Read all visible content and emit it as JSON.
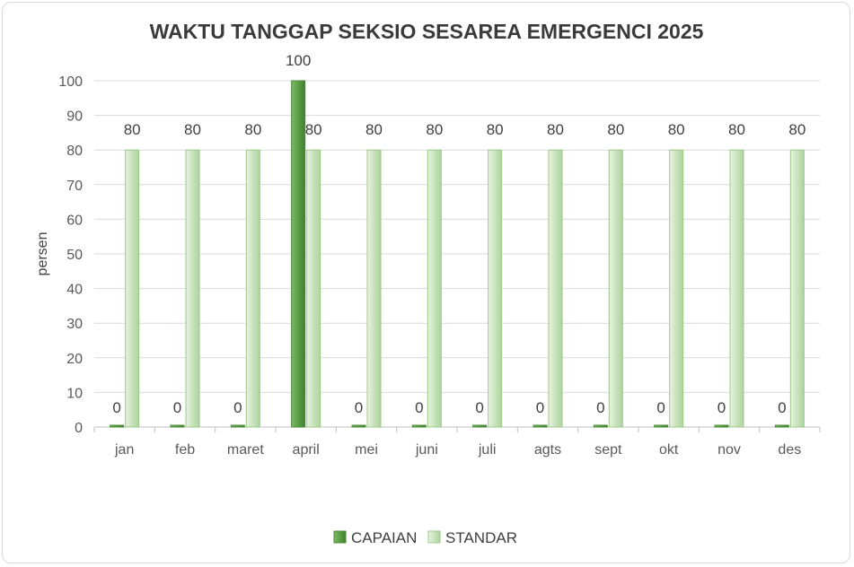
{
  "chart_data": {
    "type": "bar",
    "title": "WAKTU TANGGAP SEKSIO SESAREA EMERGENCI 2025",
    "xlabel": "",
    "ylabel": "persen",
    "ylim": [
      0,
      100
    ],
    "yticks": [
      0,
      10,
      20,
      30,
      40,
      50,
      60,
      70,
      80,
      90,
      100
    ],
    "categories": [
      "jan",
      "feb",
      "maret",
      "april",
      "mei",
      "juni",
      "juli",
      "agts",
      "sept",
      "okt",
      "nov",
      "des"
    ],
    "series": [
      {
        "name": "CAPAIAN",
        "values": [
          0,
          0,
          0,
          100,
          0,
          0,
          0,
          0,
          0,
          0,
          0,
          0
        ],
        "color": "#5b9a45"
      },
      {
        "name": "STANDAR",
        "values": [
          80,
          80,
          80,
          80,
          80,
          80,
          80,
          80,
          80,
          80,
          80,
          80
        ],
        "color": "#c5e0b8"
      }
    ],
    "grid": true,
    "legend_position": "bottom"
  }
}
